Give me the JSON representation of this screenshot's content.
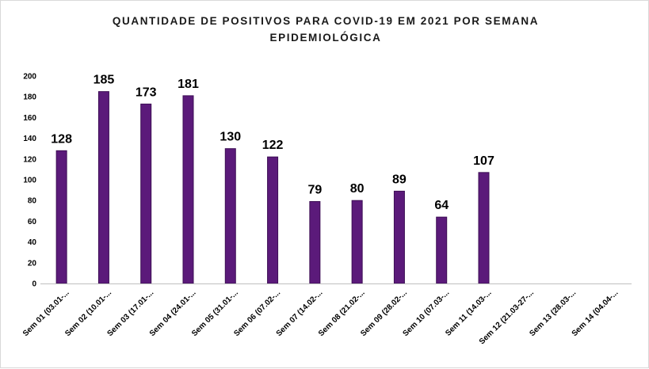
{
  "chart_data": {
    "type": "bar",
    "title_lines": [
      "QUANTIDADE DE POSITIVOS PARA COVID-19  EM 2021 POR SEMANA",
      "EPIDEMIOLÓGICA"
    ],
    "categories": [
      "Sem 01 (03.01-...",
      "Sem 02 (10.01-...",
      "Sem 03 (17.01-...",
      "Sem 04 (24.01-...",
      "Sem 05 (31.01-...",
      "Sem 06 (07.02-...",
      "Sem 07 (14.02-...",
      "Sem 08 (21.02-...",
      "Sem 09 (28.02-...",
      "Sem 10 (07.03-...",
      "Sem 11 (14.03-...",
      "Sem 12 (21.03-27-...",
      "Sem 13 (28.03-...",
      "Sem 14 (04.04-..."
    ],
    "values": [
      128,
      185,
      173,
      181,
      130,
      122,
      79,
      80,
      89,
      64,
      107,
      null,
      null,
      null
    ],
    "ylim": [
      0,
      200
    ],
    "yticks": [
      0,
      20,
      40,
      60,
      80,
      100,
      120,
      140,
      160,
      180,
      200
    ],
    "grid": false,
    "legend": "none",
    "bar_color": "#5b1a7a",
    "bar_edge_color": "#3d0f55"
  }
}
